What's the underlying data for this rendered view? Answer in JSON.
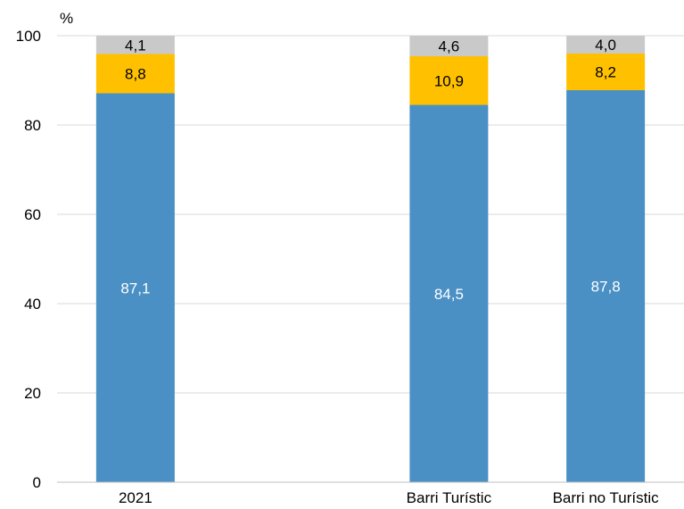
{
  "chart_data": {
    "type": "bar",
    "stacked": true,
    "ylabel": "%",
    "ylim": [
      0,
      100
    ],
    "yticks": [
      0,
      20,
      40,
      60,
      80,
      100
    ],
    "grid": true,
    "categories": [
      "2021",
      "",
      "Barri Turístic",
      "Barri no Turístic"
    ],
    "series": [
      {
        "values": [
          87.1,
          null,
          84.5,
          87.8
        ],
        "labels": [
          "87,1",
          "",
          "84,5",
          "87,8"
        ],
        "color": "#4a90c4",
        "label_color": "#ffffff"
      },
      {
        "values": [
          8.8,
          null,
          10.9,
          8.2
        ],
        "labels": [
          "8,8",
          "",
          "10,9",
          "8,2"
        ],
        "color": "#ffc000",
        "label_color": "#000000"
      },
      {
        "values": [
          4.1,
          null,
          4.6,
          4.0
        ],
        "labels": [
          "4,1",
          "",
          "4,6",
          "4,0"
        ],
        "color": "#c9c9c9",
        "label_color": "#000000"
      }
    ],
    "gridline_color": "#d9d9d9",
    "axis_color": "#bfbfbf"
  }
}
